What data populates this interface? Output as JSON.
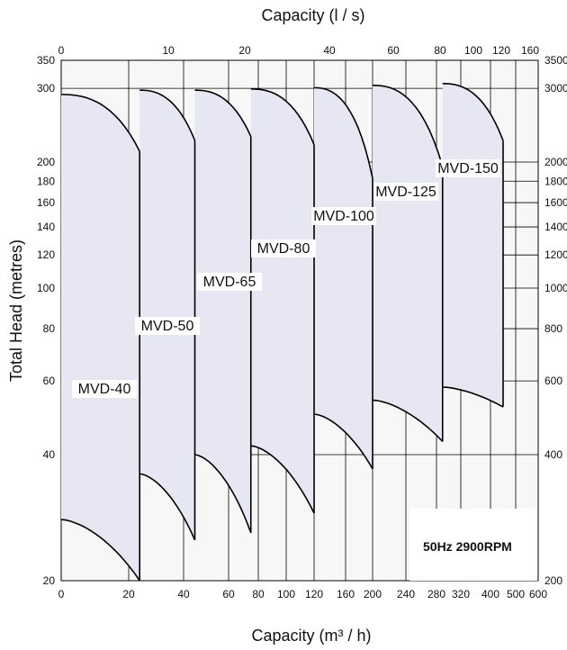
{
  "chart_data": {
    "type": "area",
    "title": "",
    "xlabel_bottom": "Capacity (m³ / h)",
    "xlabel_top": "Capacity (l / s)",
    "ylabel": "Total Head (metres)",
    "note": "50Hz 2900RPM",
    "x_bottom_ticks": [
      "0",
      "20",
      "40",
      "60",
      "80",
      "100",
      "120",
      "160",
      "200",
      "240",
      "280",
      "320",
      "400",
      "500",
      "600"
    ],
    "x_top_ticks": [
      "0",
      "10",
      "20",
      "40",
      "60",
      "80",
      "100",
      "120",
      "160"
    ],
    "y_left_ticks": [
      "20",
      "40",
      "60",
      "80",
      "100",
      "120",
      "140",
      "160",
      "180",
      "200",
      "300",
      "350"
    ],
    "y_right_ticks": [
      "200",
      "400",
      "600",
      "800",
      "1000",
      "1200",
      "1400",
      "1600",
      "1800",
      "2000",
      "3000",
      "3500"
    ],
    "series": [
      {
        "name": "MVD-40",
        "x_min": 0,
        "x_max": 24,
        "head_top_left": 290,
        "head_top_right": 212,
        "head_bottom_left": 28,
        "head_bottom_right": 20
      },
      {
        "name": "MVD-50",
        "x_min": 24,
        "x_max": 45,
        "head_top_left": 297,
        "head_top_right": 225,
        "head_bottom_left": 36,
        "head_bottom_right": 25
      },
      {
        "name": "MVD-65",
        "x_min": 45,
        "x_max": 75,
        "head_top_left": 297,
        "head_top_right": 230,
        "head_bottom_left": 40,
        "head_bottom_right": 26
      },
      {
        "name": "MVD-80",
        "x_min": 75,
        "x_max": 120,
        "head_top_left": 299,
        "head_top_right": 220,
        "head_bottom_left": 42,
        "head_bottom_right": 29
      },
      {
        "name": "MVD-100",
        "x_min": 120,
        "x_max": 200,
        "head_top_left": 301,
        "head_top_right": 183,
        "head_bottom_left": 50,
        "head_bottom_right": 37
      },
      {
        "name": "MVD-125",
        "x_min": 200,
        "x_max": 290,
        "head_top_left": 305,
        "head_top_right": 195,
        "head_bottom_left": 54,
        "head_bottom_right": 43
      },
      {
        "name": "MVD-150",
        "x_min": 290,
        "x_max": 450,
        "head_top_left": 308,
        "head_top_right": 225,
        "head_bottom_left": 58,
        "head_bottom_right": 52
      }
    ],
    "ylim": [
      20,
      350
    ],
    "xlim": [
      0,
      600
    ],
    "colors": {
      "fill": "#e6e7f3",
      "line": "#000000",
      "grid": "#000000"
    }
  }
}
